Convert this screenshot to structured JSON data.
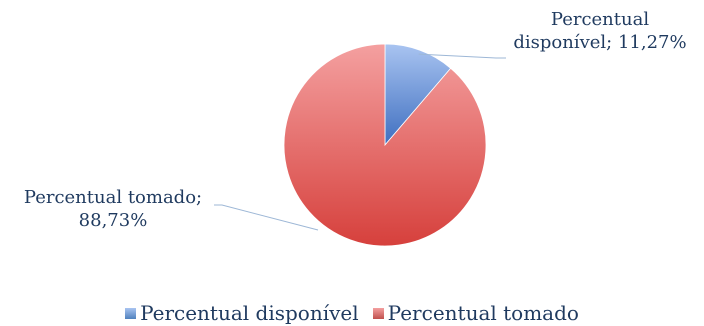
{
  "chart_data": {
    "type": "pie",
    "categories": [
      "Percentual disponível",
      "Percentual tomado"
    ],
    "values": [
      11.27,
      88.73
    ],
    "data_labels": [
      [
        "Percentual",
        "disponível; 11,27%"
      ],
      [
        "Percentual tomado;",
        "88,73%"
      ]
    ],
    "colors": [
      "#4f81bd",
      "#c0504d"
    ],
    "legend": {
      "position": "bottom",
      "items": [
        "Percentual disponível",
        "Percentual tomado"
      ]
    },
    "start_angle": "12 o'clock",
    "direction": "clockwise"
  }
}
